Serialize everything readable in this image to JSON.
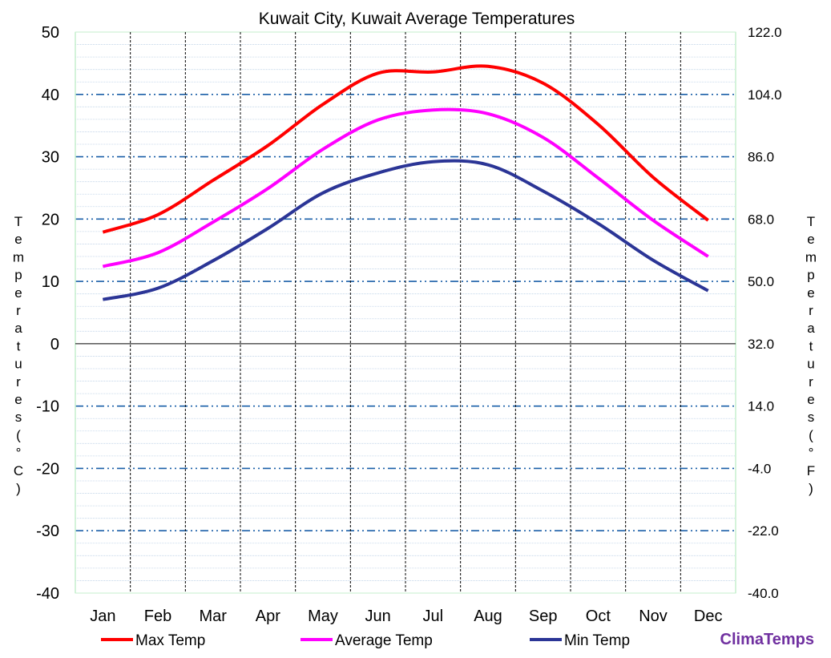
{
  "chart_data": {
    "type": "line",
    "title": "Kuwait City, Kuwait Average Temperatures",
    "categories": [
      "Jan",
      "Feb",
      "Mar",
      "Apr",
      "May",
      "Jun",
      "Jul",
      "Aug",
      "Sep",
      "Oct",
      "Nov",
      "Dec"
    ],
    "series": [
      {
        "name": "Max Temp",
        "color": "#ff0000",
        "values": [
          17.9,
          20.7,
          26.2,
          31.8,
          38.4,
          43.4,
          43.6,
          44.5,
          41.8,
          35.2,
          26.7,
          19.8
        ]
      },
      {
        "name": "Average Temp",
        "color": "#ff00ff",
        "values": [
          12.4,
          14.6,
          19.5,
          24.9,
          31.2,
          35.9,
          37.5,
          36.9,
          33.1,
          26.6,
          19.8,
          14.0
        ]
      },
      {
        "name": "Min Temp",
        "color": "#2b3596",
        "values": [
          7.1,
          8.9,
          13.3,
          18.5,
          24.2,
          27.4,
          29.2,
          28.7,
          24.5,
          19.3,
          13.4,
          8.5
        ]
      }
    ],
    "y_left": {
      "label": "Temperatures (°C)",
      "range": [
        -40,
        50
      ],
      "ticks": [
        "50",
        "40",
        "30",
        "20",
        "10",
        "0",
        "-10",
        "-20",
        "-30",
        "-40"
      ]
    },
    "y_right": {
      "label": "Temperatures (°F)",
      "range": [
        -40,
        122
      ],
      "ticks": [
        "122.0",
        "104.0",
        "86.0",
        "68.0",
        "50.0",
        "32.0",
        "14.0",
        "-4.0",
        "-22.0",
        "-40.0"
      ]
    },
    "grid": true,
    "legend_position": "bottom",
    "brand": "ClimaTemps",
    "brand_color": "#7030a0"
  }
}
